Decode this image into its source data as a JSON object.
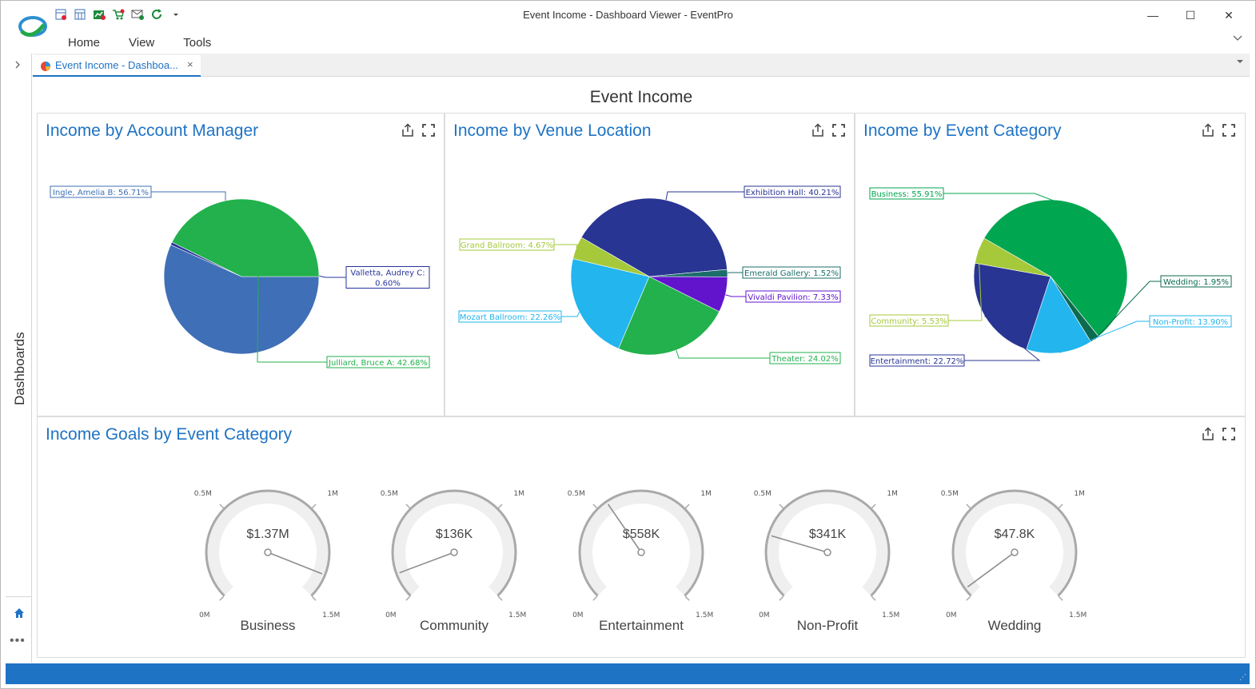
{
  "window": {
    "title": "Event Income - Dashboard Viewer - EventPro",
    "controls": [
      "—",
      "☐",
      "✕"
    ]
  },
  "menu": {
    "items": [
      "Home",
      "View",
      "Tools"
    ]
  },
  "sidebar": {
    "label": "Dashboards"
  },
  "tab": {
    "label": "Event Income - Dashboa...",
    "close": "×"
  },
  "dashboard": {
    "title": "Event Income",
    "panels": {
      "manager": {
        "title": "Income by Account Manager",
        "slices": [
          {
            "label": "Ingle, Amelia B: 56.71%",
            "value": 56.71,
            "color": "#3f6fb6"
          },
          {
            "label": "Valletta, Audrey C:",
            "label2": "0.60%",
            "value": 0.6,
            "color": "#27349a"
          },
          {
            "label": "Julliard, Bruce A: 42.68%",
            "value": 42.68,
            "color": "#22b14c"
          }
        ]
      },
      "venue": {
        "title": "Income by Venue Location",
        "slices": [
          {
            "label": "Exhibition Hall: 40.21%",
            "value": 40.21,
            "color": "#283593"
          },
          {
            "label": "Emerald Gallery: 1.52%",
            "value": 1.52,
            "color": "#1b6e6a"
          },
          {
            "label": "Vivaldi Pavilion: 7.33%",
            "value": 7.33,
            "color": "#6114cc"
          },
          {
            "label": "Theater: 24.02%",
            "value": 24.02,
            "color": "#22b14c"
          },
          {
            "label": "Mozart Ballroom: 22.26%",
            "value": 22.26,
            "color": "#22b5ee"
          },
          {
            "label": "Grand Ballroom: 4.67%",
            "value": 4.67,
            "color": "#a5c93a"
          }
        ]
      },
      "category": {
        "title": "Income by Event Category",
        "slices": [
          {
            "label": "Business: 55.91%",
            "value": 55.91,
            "color": "#00a650"
          },
          {
            "label": "Wedding: 1.95%",
            "value": 1.95,
            "color": "#0c6a4f"
          },
          {
            "label": "Non-Profit: 13.90%",
            "value": 13.9,
            "color": "#22b5ee"
          },
          {
            "label": "Entertainment: 22.72%",
            "value": 22.72,
            "color": "#283593"
          },
          {
            "label": "Community: 5.53%",
            "value": 5.53,
            "color": "#a5c93a"
          }
        ]
      },
      "goals": {
        "title": "Income Goals by Event Category",
        "scale": {
          "min": 0,
          "max": 1.5,
          "ticks": [
            "0M",
            "0.5M",
            "1M",
            "1.5M"
          ]
        },
        "gauges": [
          {
            "name": "Business",
            "display": "$1.37M",
            "value": 1.37
          },
          {
            "name": "Community",
            "display": "$136K",
            "value": 0.136
          },
          {
            "name": "Entertainment",
            "display": "$558K",
            "value": 0.558
          },
          {
            "name": "Non-Profit",
            "display": "$341K",
            "value": 0.341
          },
          {
            "name": "Wedding",
            "display": "$47.8K",
            "value": 0.0478
          }
        ]
      }
    }
  },
  "chart_data": [
    {
      "type": "pie",
      "title": "Income by Account Manager",
      "categories": [
        "Ingle, Amelia B",
        "Valletta, Audrey C",
        "Julliard, Bruce A"
      ],
      "values": [
        56.71,
        0.6,
        42.68
      ]
    },
    {
      "type": "pie",
      "title": "Income by Venue Location",
      "categories": [
        "Exhibition Hall",
        "Emerald Gallery",
        "Vivaldi Pavilion",
        "Theater",
        "Mozart Ballroom",
        "Grand Ballroom"
      ],
      "values": [
        40.21,
        1.52,
        7.33,
        24.02,
        22.26,
        4.67
      ]
    },
    {
      "type": "pie",
      "title": "Income by Event Category",
      "categories": [
        "Business",
        "Wedding",
        "Non-Profit",
        "Entertainment",
        "Community"
      ],
      "values": [
        55.91,
        1.95,
        13.9,
        22.72,
        5.53
      ]
    },
    {
      "type": "gauge",
      "title": "Income Goals by Event Category",
      "categories": [
        "Business",
        "Community",
        "Entertainment",
        "Non-Profit",
        "Wedding"
      ],
      "values": [
        1.37,
        0.136,
        0.558,
        0.341,
        0.0478
      ],
      "ylim": [
        0,
        1.5
      ]
    }
  ]
}
